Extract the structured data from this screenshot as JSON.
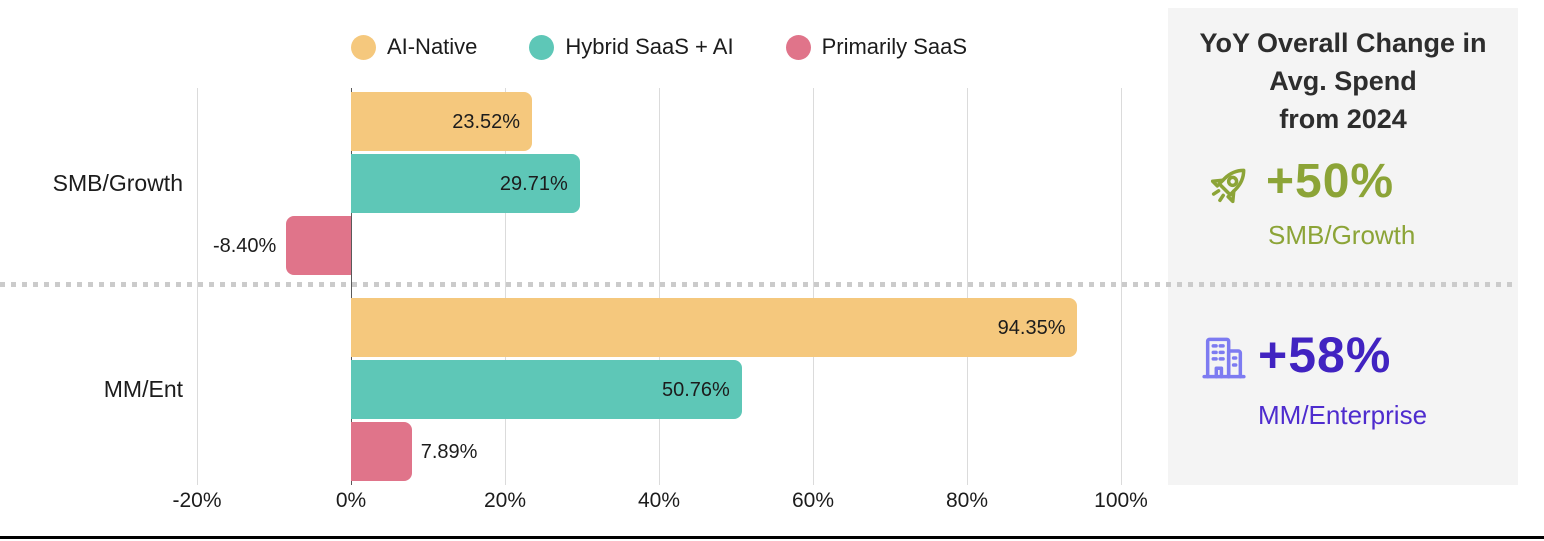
{
  "chart_data": {
    "type": "bar",
    "orientation": "horizontal",
    "categories": [
      "SMB/Growth",
      "MM/Ent"
    ],
    "series": [
      {
        "name": "AI-Native",
        "color": "#F5C87D",
        "values": [
          23.52,
          94.35
        ],
        "labels": [
          "23.52%",
          "94.35%"
        ]
      },
      {
        "name": "Hybrid SaaS + AI",
        "color": "#5EC7B7",
        "values": [
          29.71,
          50.76
        ],
        "labels": [
          "29.71%",
          "50.76%"
        ]
      },
      {
        "name": "Primarily SaaS",
        "color": "#E0748A",
        "values": [
          -8.4,
          7.89
        ],
        "labels": [
          "-8.40%",
          "7.89%"
        ]
      }
    ],
    "x_ticks": [
      {
        "value": -20,
        "label": "-20%"
      },
      {
        "value": 0,
        "label": "0%"
      },
      {
        "value": 20,
        "label": "20%"
      },
      {
        "value": 40,
        "label": "40%"
      },
      {
        "value": 60,
        "label": "60%"
      },
      {
        "value": 80,
        "label": "80%"
      },
      {
        "value": 100,
        "label": "100%"
      }
    ],
    "xlim": [
      -20,
      100
    ],
    "grid": "vertical",
    "legend_position": "top",
    "group_divider": "dotted"
  },
  "colors": {
    "grid_line": "#DBDBDB",
    "zero_line": "#5A5A5A",
    "divider": "#CBCBCB",
    "panel_bg": "#F4F4F4",
    "bottom_rule": "#000000",
    "label_text": "#1C1C1C"
  },
  "side_panel": {
    "title_line1": "YoY Overall Change in",
    "title_line2": "Avg. Spend",
    "title_line3": "from 2024",
    "smb": {
      "icon": "rocket-icon",
      "value": "+50%",
      "label": "SMB/Growth",
      "accent": "#8CA437"
    },
    "mm": {
      "icon": "building-icon",
      "value": "+58%",
      "label": "MM/Enterprise",
      "value_color": "#4123C1",
      "label_color": "#4E2CCE",
      "icon_color": "#7D7BF1"
    }
  }
}
